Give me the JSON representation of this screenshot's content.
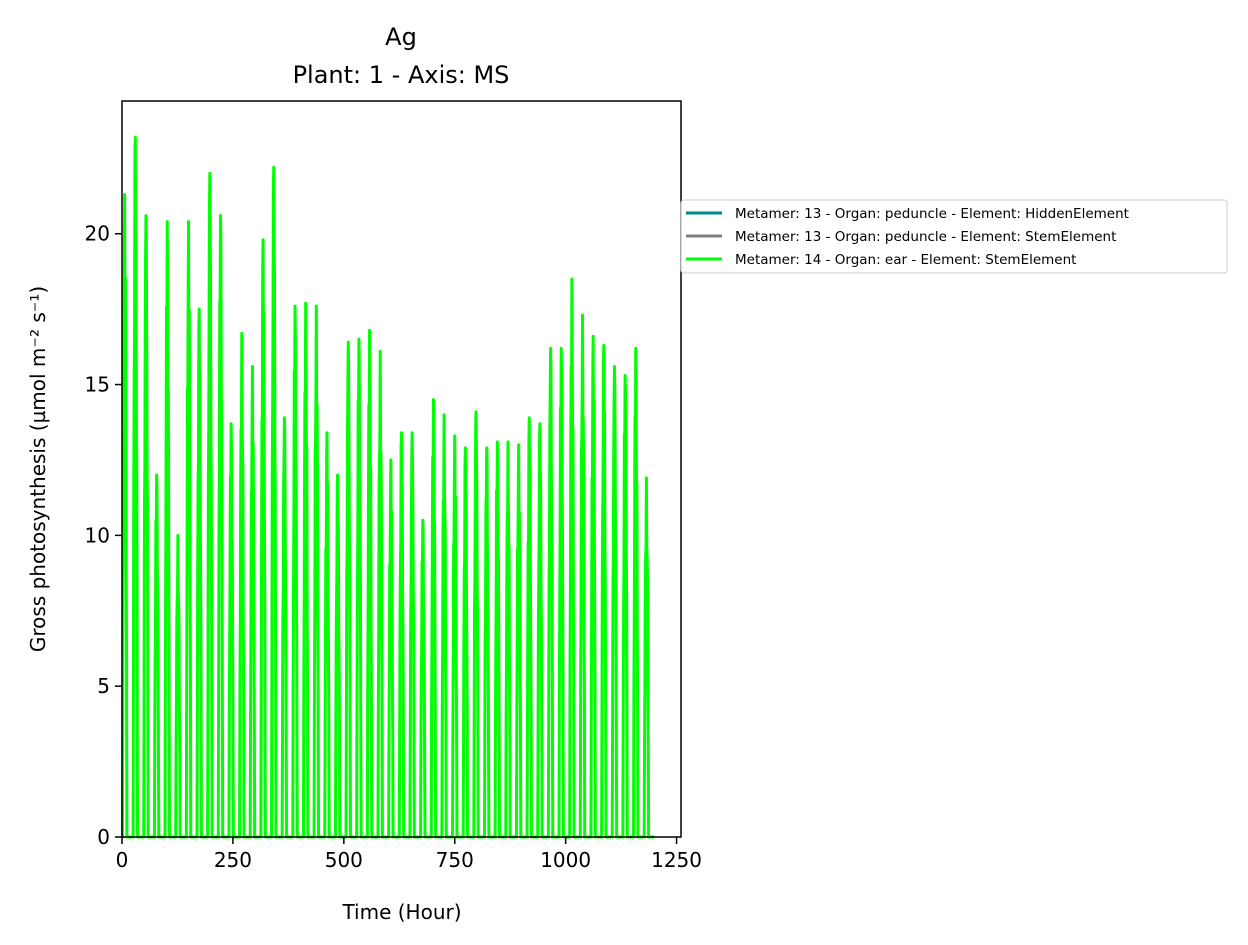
{
  "figure": {
    "title_line1": "Ag",
    "title_line2": "Plant: 1 - Axis: MS"
  },
  "chart_data": {
    "type": "line",
    "title": "Ag\nPlant: 1 - Axis: MS",
    "xlabel": "Time (Hour)",
    "ylabel": "Gross photosynthesis (µmol m⁻² s⁻¹)",
    "xlim": [
      0,
      1260
    ],
    "ylim": [
      0,
      24.4
    ],
    "xticks": [
      0,
      250,
      500,
      750,
      1000,
      1250
    ],
    "yticks": [
      0,
      5,
      10,
      15,
      20
    ],
    "grid": false,
    "legend_position": "outside right, upper",
    "series": [
      {
        "name": "Metamer: 13 - Organ: peduncle - Element: HiddenElement",
        "color": "#008b8b",
        "values": []
      },
      {
        "name": "Metamer: 13 - Organ: peduncle - Element: StemElement",
        "color": "#808080",
        "values": []
      },
      {
        "name": "Metamer: 14 - Organ: ear - Element: StemElement",
        "color": "#00ff00",
        "pattern": "daily cycle: zero at night, peak near midday",
        "period_hours": 24,
        "day_start_hour": 1,
        "day_end_hour": 11,
        "x_end": 1200,
        "daily_peaks": [
          21.3,
          23.2,
          20.6,
          12.0,
          20.4,
          10.0,
          20.4,
          17.5,
          22.0,
          20.6,
          13.7,
          16.7,
          15.6,
          19.8,
          22.2,
          13.9,
          17.6,
          17.7,
          17.6,
          13.4,
          12.0,
          16.4,
          16.5,
          16.8,
          16.1,
          12.5,
          13.4,
          13.4,
          10.5,
          14.5,
          14.0,
          13.3,
          12.9,
          14.1,
          12.9,
          13.1,
          13.1,
          13.0,
          13.9,
          13.7,
          16.2,
          16.2,
          18.5,
          17.3,
          16.6,
          16.3,
          15.6,
          15.3,
          16.2,
          11.9
        ]
      }
    ]
  }
}
